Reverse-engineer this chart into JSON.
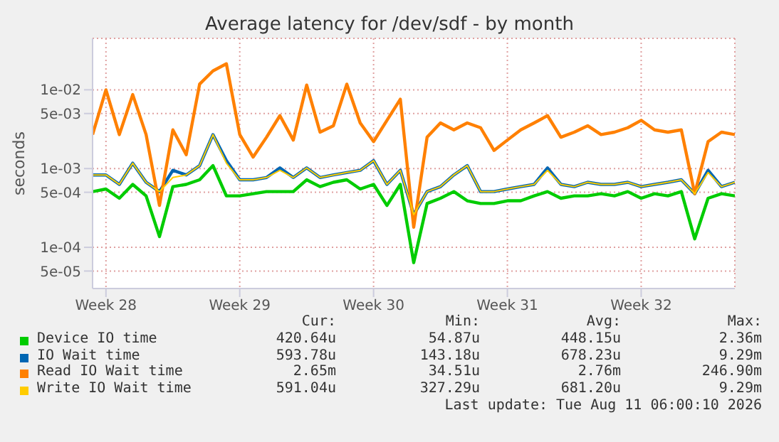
{
  "chart_data": {
    "type": "line",
    "title": "Average latency for /dev/sdf - by month",
    "ylabel": "seconds",
    "log": true,
    "grid": true,
    "legend": "bottom",
    "marker": "none",
    "line_style": "solid",
    "categories": [
      null,
      "Week 28",
      null,
      null,
      null,
      null,
      null,
      null,
      null,
      null,
      null,
      "Week 29",
      null,
      null,
      null,
      null,
      null,
      null,
      null,
      null,
      null,
      "Week 30",
      null,
      null,
      null,
      null,
      null,
      null,
      null,
      null,
      null,
      "Week 31",
      null,
      null,
      null,
      null,
      null,
      null,
      null,
      null,
      null,
      "Week 32",
      null,
      null,
      null,
      null,
      null,
      null,
      null
    ],
    "ylim": [
      3e-05,
      0.045
    ],
    "yticks": [
      {
        "value": 5e-05,
        "label": "5e-05"
      },
      {
        "value": 0.0001,
        "label": "1e-04"
      },
      {
        "value": 0.0005,
        "label": "5e-04"
      },
      {
        "value": 0.001,
        "label": "1e-03"
      },
      {
        "value": 0.005,
        "label": "5e-03"
      },
      {
        "value": 0.01,
        "label": "1e-02"
      }
    ],
    "series": [
      {
        "name": "Device IO time",
        "color": "#00cc00",
        "values": [
          0.00051,
          0.00055,
          0.00042,
          0.00063,
          0.00045,
          0.000137,
          0.00059,
          0.00063,
          0.00072,
          0.00109,
          0.00045,
          0.00045,
          0.00048,
          0.00051,
          0.00051,
          0.00051,
          0.00072,
          0.00059,
          0.00067,
          0.00072,
          0.00055,
          0.00063,
          0.00034,
          0.00063,
          6.4e-05,
          0.00036,
          0.00042,
          0.00051,
          0.00039,
          0.00036,
          0.00036,
          0.00039,
          0.00039,
          0.00045,
          0.00051,
          0.00042,
          0.00045,
          0.00045,
          0.00048,
          0.00045,
          0.00051,
          0.00042,
          0.00048,
          0.00045,
          0.00051,
          0.000128,
          0.00042,
          0.00048,
          0.00045
        ]
      },
      {
        "name": "IO Wait time",
        "color": "#0066b3",
        "values": [
          0.00083,
          0.00083,
          0.00063,
          0.00117,
          0.00067,
          0.00051,
          0.00095,
          0.00083,
          0.00109,
          0.0027,
          0.00126,
          0.00072,
          0.00072,
          0.00077,
          0.00102,
          0.00077,
          0.00102,
          0.00077,
          0.00083,
          0.00089,
          0.00095,
          0.00126,
          0.00063,
          0.00095,
          0.00026,
          0.00051,
          0.00059,
          0.00083,
          0.00109,
          0.00051,
          0.00051,
          0.00055,
          0.00059,
          0.00063,
          0.00102,
          0.00063,
          0.00059,
          0.00067,
          0.00063,
          0.00063,
          0.00067,
          0.00059,
          0.00063,
          0.00067,
          0.00072,
          0.00048,
          0.00095,
          0.00059,
          0.00067
        ]
      },
      {
        "name": "Read IO Wait time",
        "color": "#ff8000",
        "values": [
          0.0027,
          0.01,
          0.0027,
          0.0087,
          0.0027,
          0.00034,
          0.0031,
          0.0015,
          0.0118,
          0.0174,
          0.0214,
          0.0027,
          0.0014,
          0.0025,
          0.0047,
          0.0023,
          0.0115,
          0.0029,
          0.0035,
          0.0118,
          0.0038,
          0.0022,
          0.0041,
          0.0076,
          0.00018,
          0.0025,
          0.0038,
          0.0031,
          0.0038,
          0.0033,
          0.0017,
          0.0023,
          0.0031,
          0.0038,
          0.0047,
          0.0025,
          0.0029,
          0.0035,
          0.0027,
          0.0029,
          0.0033,
          0.0041,
          0.0031,
          0.0029,
          0.0031,
          0.00048,
          0.0022,
          0.0029,
          0.0027
        ]
      },
      {
        "name": "Write IO Wait time",
        "color": "#ffcc00",
        "values": [
          0.00083,
          0.00083,
          0.00063,
          0.00117,
          0.00067,
          0.00051,
          0.00077,
          0.00083,
          0.00109,
          0.0027,
          0.00117,
          0.00072,
          0.00072,
          0.00077,
          0.00095,
          0.00077,
          0.00102,
          0.00077,
          0.00083,
          0.00089,
          0.00095,
          0.00126,
          0.00063,
          0.00095,
          0.00026,
          0.00051,
          0.00059,
          0.00083,
          0.00109,
          0.00051,
          0.00051,
          0.00055,
          0.00059,
          0.00063,
          0.00095,
          0.00063,
          0.00059,
          0.00067,
          0.00063,
          0.00063,
          0.00067,
          0.00059,
          0.00063,
          0.00067,
          0.00072,
          0.00048,
          0.00089,
          0.00059,
          0.00067
        ]
      }
    ],
    "annotations": [
      "Cur:",
      "Min:",
      "Avg:",
      "Max:",
      "420.64u",
      "54.87u",
      "448.15u",
      "2.36m",
      "593.78u",
      "143.18u",
      "678.23u",
      "9.29m",
      "2.65m",
      "34.51u",
      "2.76m",
      "246.90m",
      "591.04u",
      "327.29u",
      "681.20u",
      "9.29m",
      "Last update: Tue Aug 11 06:00:10 2026"
    ]
  }
}
